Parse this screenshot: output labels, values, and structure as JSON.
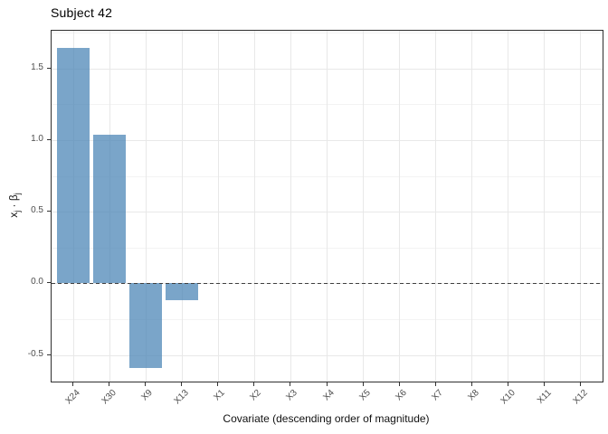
{
  "chart_data": {
    "type": "bar",
    "title": "Subject 42",
    "xlabel": "Covariate (descending order of magnitude)",
    "ylabel": "x_j · β_j",
    "ylabel_parts": {
      "var": "x",
      "var_sub": "j",
      "dot": " · ",
      "coef": "β",
      "coef_sub": "j"
    },
    "categories": [
      "X24",
      "X30",
      "X9",
      "X13",
      "X1",
      "X2",
      "X3",
      "X4",
      "X5",
      "X6",
      "X7",
      "X8",
      "X10",
      "X11",
      "X12"
    ],
    "values": [
      1.64,
      1.04,
      -0.59,
      -0.12,
      0,
      0,
      0,
      0,
      0,
      0,
      0,
      0,
      0,
      0,
      0
    ],
    "yticks": [
      1.5,
      1.0,
      0.5,
      0.0,
      -0.5
    ],
    "ytick_labels": [
      "1.5",
      "1.0",
      "0.5",
      "0.0",
      "-0.5"
    ],
    "yticks_minor": [
      1.75,
      1.25,
      0.75,
      0.25,
      -0.25
    ],
    "ylim": [
      -0.685,
      1.763
    ],
    "reference_line": {
      "y": 0,
      "style": "dashed",
      "color": "#404040"
    },
    "bar_color": "#4682b4",
    "bar_alpha": 0.72,
    "grid": true,
    "legend_position": "none"
  }
}
